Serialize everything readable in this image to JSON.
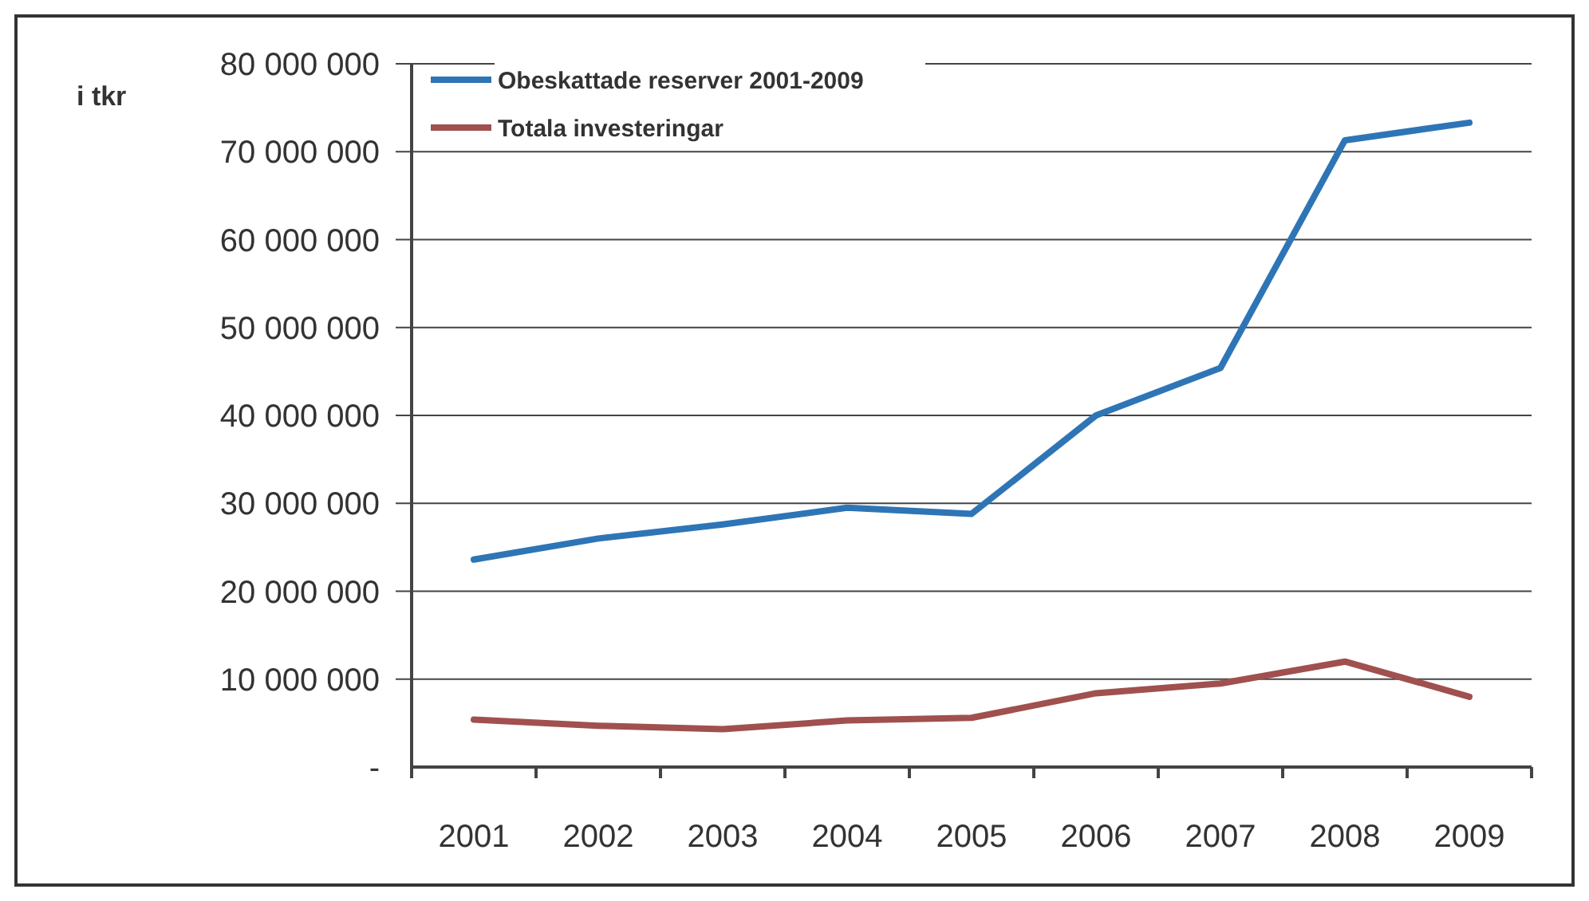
{
  "chart_data": {
    "type": "line",
    "ylabel": "i tkr",
    "categories": [
      "2001",
      "2002",
      "2003",
      "2004",
      "2005",
      "2006",
      "2007",
      "2008",
      "2009"
    ],
    "series": [
      {
        "name": "Obeskattade reserver 2001-2009",
        "color": "#2e75b6",
        "values": [
          23600000,
          26000000,
          27600000,
          29500000,
          28800000,
          40000000,
          45400000,
          71300000,
          73300000
        ]
      },
      {
        "name": "Totala investeringar",
        "color": "#a0504f",
        "values": [
          5400000,
          4700000,
          4300000,
          5300000,
          5600000,
          8400000,
          9500000,
          12000000,
          8000000
        ]
      }
    ],
    "ylim": [
      0,
      80000000
    ],
    "yticks": [
      {
        "value": 0,
        "label": "-"
      },
      {
        "value": 10000000,
        "label": "10 000 000"
      },
      {
        "value": 20000000,
        "label": "20 000 000"
      },
      {
        "value": 30000000,
        "label": "30 000 000"
      },
      {
        "value": 40000000,
        "label": "40 000 000"
      },
      {
        "value": 50000000,
        "label": "50 000 000"
      },
      {
        "value": 60000000,
        "label": "60 000 000"
      },
      {
        "value": 70000000,
        "label": "70 000 000"
      },
      {
        "value": 80000000,
        "label": "80 000 000"
      }
    ],
    "grid": "y",
    "legend": "top left",
    "line_style": "solid",
    "marker": "none"
  }
}
